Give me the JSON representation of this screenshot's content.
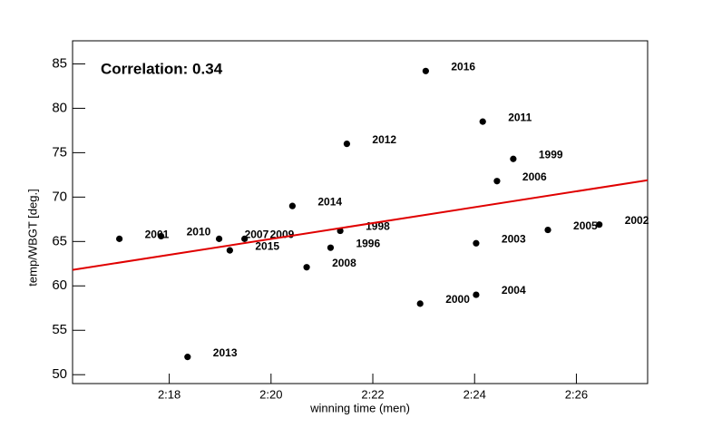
{
  "chart_data": {
    "type": "scatter",
    "annotation": "Correlation: 0.34",
    "x_label": "winning time (men)",
    "y_label": "temp/WBGT [deg.]",
    "xlim": [
      136.1,
      147.4
    ],
    "ylim": [
      49.0,
      87.6
    ],
    "xticks": [
      {
        "value": 138,
        "label": "2:18"
      },
      {
        "value": 140,
        "label": "2:20"
      },
      {
        "value": 142,
        "label": "2:22"
      },
      {
        "value": 144,
        "label": "2:24"
      },
      {
        "value": 146,
        "label": "2:26"
      }
    ],
    "yticks": [
      50,
      55,
      60,
      65,
      70,
      75,
      80,
      85
    ],
    "color": "#000000",
    "labels": [
      "2001",
      "2010",
      "2013",
      "2007",
      "2015",
      "2009",
      "2014",
      "2008",
      "2012",
      "1996",
      "1998",
      "2000",
      "2016",
      "2003",
      "2004",
      "2011",
      "2006",
      "1999",
      "2005",
      "2002"
    ],
    "x": [
      137.02,
      137.84,
      138.36,
      138.98,
      139.19,
      139.48,
      140.42,
      140.7,
      141.49,
      141.17,
      141.36,
      142.93,
      143.04,
      144.03,
      144.03,
      144.16,
      144.44,
      144.76,
      145.44,
      146.45
    ],
    "y": [
      65.3,
      65.6,
      52.0,
      65.3,
      64.0,
      65.3,
      69.0,
      62.1,
      76.0,
      64.3,
      66.2,
      58.0,
      84.2,
      64.8,
      59.0,
      78.5,
      71.8,
      74.3,
      66.3,
      66.9
    ],
    "fit": {
      "x": [
        136.1,
        147.4
      ],
      "y": [
        61.8,
        71.9
      ],
      "color": "#e00000"
    }
  }
}
